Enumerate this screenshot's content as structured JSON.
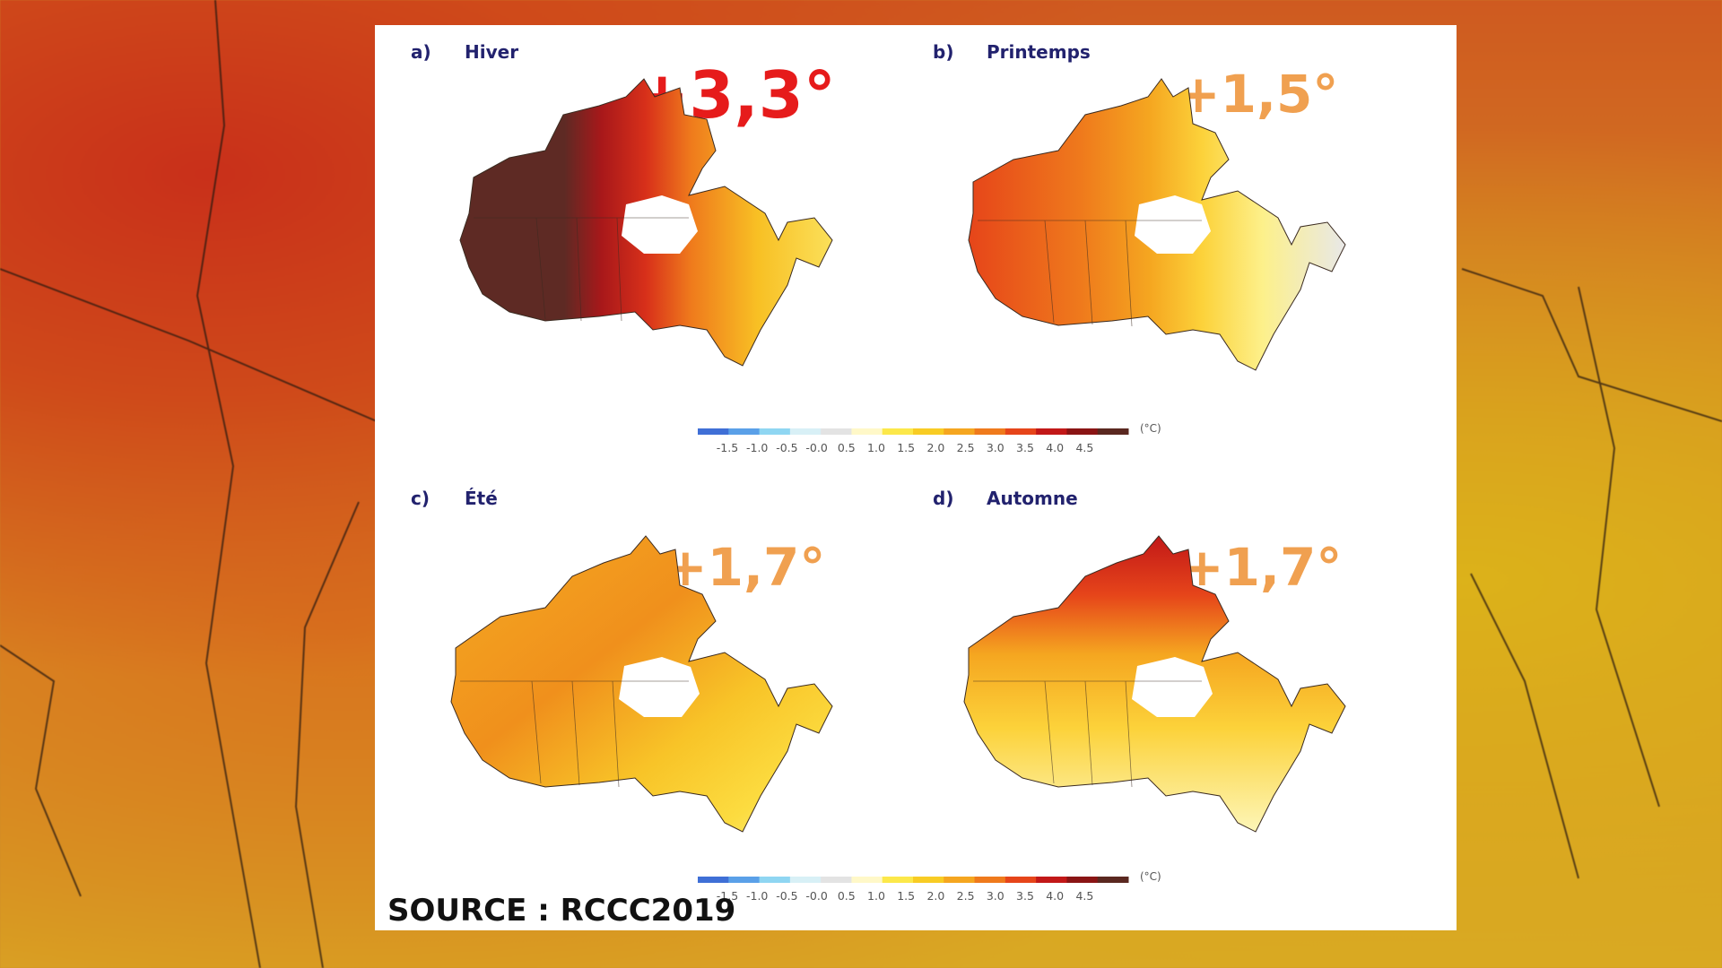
{
  "panels": [
    {
      "letter": "a)",
      "season": "Hiver",
      "change": "+3,3°",
      "change_color": "#e61b1b"
    },
    {
      "letter": "b)",
      "season": "Printemps",
      "change": "+1,5°",
      "change_color": "#f0a050"
    },
    {
      "letter": "c)",
      "season": "Été",
      "change": "+1,7°",
      "change_color": "#f0a050"
    },
    {
      "letter": "d)",
      "season": "Automne",
      "change": "+1,7°",
      "change_color": "#f0a050"
    }
  ],
  "colorbar": {
    "unit": "(°C)",
    "ticks": [
      "-1.5",
      "-1.0",
      "-0.5",
      "-0.0",
      "0.5",
      "1.0",
      "1.5",
      "2.0",
      "2.5",
      "3.0",
      "3.5",
      "4.0",
      "4.5"
    ],
    "colors": [
      "#3f6fd6",
      "#5aa0e8",
      "#8fd6f2",
      "#d8f0f6",
      "#e3e3e3",
      "#fff8c8",
      "#fce84a",
      "#f8cc24",
      "#f5a620",
      "#ef7a1c",
      "#e6451a",
      "#c21818",
      "#8a1414",
      "#5a2820"
    ]
  },
  "source": "SOURCE : RCCC2019",
  "map_colors": {
    "winter": [
      "#5e2a24",
      "#a8181a",
      "#d8301a",
      "#ef7a1c",
      "#f8c024",
      "#fbe05a"
    ],
    "spring": [
      "#e6451a",
      "#ef7a1c",
      "#f5a620",
      "#fcd23a",
      "#fdf08a",
      "#e8e8e8"
    ],
    "summer": [
      "#f0901c",
      "#f5aa22",
      "#f8c428",
      "#fcdc40",
      "#fdf08a"
    ],
    "autumn": [
      "#c21818",
      "#e6451a",
      "#f5a620",
      "#fcd23a",
      "#fdf6b8"
    ]
  }
}
